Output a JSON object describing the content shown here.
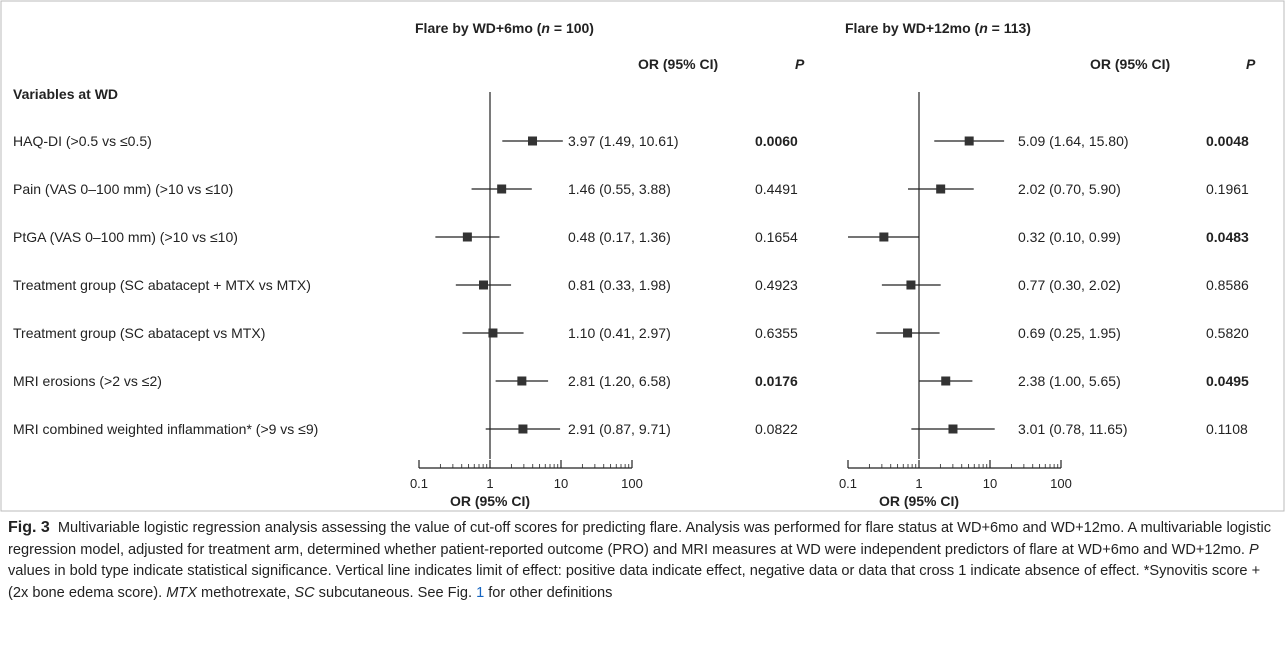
{
  "chart_data": {
    "type": "forest",
    "section_label": "Variables at WD",
    "header_or": "OR (95% CI)",
    "header_p": "P",
    "axis_ticks": [
      "0.1",
      "1",
      "10",
      "100"
    ],
    "axis_scale": "log",
    "xlim": [
      0.1,
      100
    ],
    "reference_line": 1,
    "xlabel": "OR (95% CI)",
    "variables": [
      "HAQ-DI (>0.5 vs ≤0.5)",
      "Pain (VAS 0–100 mm) (>10 vs ≤10)",
      "PtGA (VAS 0–100 mm) (>10 vs ≤10)",
      "Treatment group (SC abatacept + MTX vs MTX)",
      "Treatment group (SC abatacept vs MTX)",
      "MRI erosions (>2 vs ≤2)",
      "MRI combined weighted inflammation* (>9 vs ≤9)"
    ],
    "panels": [
      {
        "title_prefix": "Flare by WD+6mo (",
        "title_n_label": "n",
        "title_suffix": " = 100)",
        "rows": [
          {
            "or": 3.97,
            "lo": 1.49,
            "hi": 10.61,
            "text": "3.97 (1.49, 10.61)",
            "p": "0.0060",
            "bold": true
          },
          {
            "or": 1.46,
            "lo": 0.55,
            "hi": 3.88,
            "text": "1.46 (0.55, 3.88)",
            "p": "0.4491",
            "bold": false
          },
          {
            "or": 0.48,
            "lo": 0.17,
            "hi": 1.36,
            "text": "0.48 (0.17, 1.36)",
            "p": "0.1654",
            "bold": false
          },
          {
            "or": 0.81,
            "lo": 0.33,
            "hi": 1.98,
            "text": "0.81 (0.33, 1.98)",
            "p": "0.4923",
            "bold": false
          },
          {
            "or": 1.1,
            "lo": 0.41,
            "hi": 2.97,
            "text": "1.10 (0.41, 2.97)",
            "p": "0.6355",
            "bold": false
          },
          {
            "or": 2.81,
            "lo": 1.2,
            "hi": 6.58,
            "text": "2.81 (1.20, 6.58)",
            "p": "0.0176",
            "bold": true
          },
          {
            "or": 2.91,
            "lo": 0.87,
            "hi": 9.71,
            "text": "2.91 (0.87, 9.71)",
            "p": "0.0822",
            "bold": false
          }
        ]
      },
      {
        "title_prefix": "Flare by WD+12mo (",
        "title_n_label": "n",
        "title_suffix": " = 113)",
        "rows": [
          {
            "or": 5.09,
            "lo": 1.64,
            "hi": 15.8,
            "text": "5.09 (1.64, 15.80)",
            "p": "0.0048",
            "bold": true
          },
          {
            "or": 2.02,
            "lo": 0.7,
            "hi": 5.9,
            "text": "2.02 (0.70, 5.90)",
            "p": "0.1961",
            "bold": false
          },
          {
            "or": 0.32,
            "lo": 0.1,
            "hi": 0.99,
            "text": "0.32 (0.10, 0.99)",
            "p": "0.0483",
            "bold": true
          },
          {
            "or": 0.77,
            "lo": 0.3,
            "hi": 2.02,
            "text": "0.77 (0.30, 2.02)",
            "p": "0.8586",
            "bold": false
          },
          {
            "or": 0.69,
            "lo": 0.25,
            "hi": 1.95,
            "text": "0.69 (0.25, 1.95)",
            "p": "0.5820",
            "bold": false
          },
          {
            "or": 2.38,
            "lo": 1.0,
            "hi": 5.65,
            "text": "2.38 (1.00, 5.65)",
            "p": "0.0495",
            "bold": true
          },
          {
            "or": 3.01,
            "lo": 0.78,
            "hi": 11.65,
            "text": "3.01 (0.78, 11.65)",
            "p": "0.1108",
            "bold": false
          }
        ]
      }
    ]
  },
  "caption": {
    "fig_label": "Fig. 3",
    "line1": "Multivariable logistic regression analysis assessing the value of cut-off scores for predicting flare. Analysis was performed for flare status at WD+6mo and WD+12mo. A multivariable logistic regression model, adjusted for treatment arm, determined whether patient-reported outcome (PRO) and MRI measures at WD were independent predictors of flare at WD+6mo and WD+12mo. ",
    "p_italic": "P",
    "line2": " values in bold type indicate statistical significance. Vertical line indicates limit of effect: positive data indicate effect, negative data or data that cross 1 indicate absence of effect. *Synovitis score + (2x bone edema score). ",
    "mtx_italic": "MTX",
    "mtx_text": " methotrexate, ",
    "sc_italic": "SC",
    "sc_text": " subcutaneous. See Fig. ",
    "fig_link": "1",
    "tail": " for other definitions"
  },
  "colors": {
    "line": "#222222",
    "marker": "#333333",
    "link": "#1565c0",
    "border": "#bbbbbb"
  }
}
